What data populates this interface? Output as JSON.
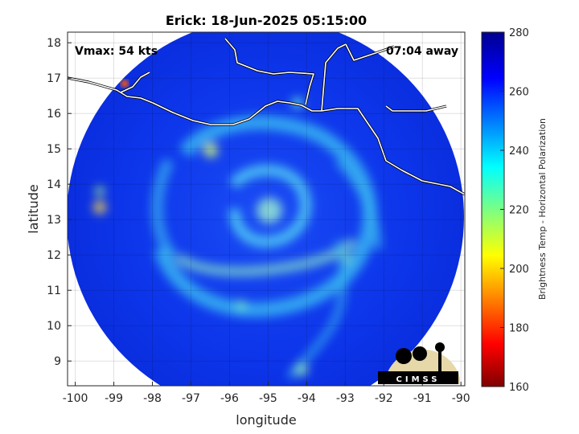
{
  "chart_data": {
    "type": "heatmap",
    "title": "Erick: 18-Jun-2025 05:15:00",
    "xlabel": "longitude",
    "ylabel": "latitude",
    "xlim": [
      -100.2,
      -89.9
    ],
    "ylim": [
      8.3,
      18.3
    ],
    "x_ticks": [
      "-100",
      "-99",
      "-98",
      "-97",
      "-96",
      "-95",
      "-94",
      "-93",
      "-92",
      "-91",
      "-90"
    ],
    "y_ticks": [
      "18",
      "17",
      "16",
      "15",
      "14",
      "13",
      "12",
      "11",
      "10",
      "9"
    ],
    "grid": true,
    "field": "brightness temperature (K), circular swath",
    "swath_center": {
      "lon": -94.9,
      "lat": 13.2
    },
    "storm_center": {
      "lon": -95.0,
      "lat": 13.2
    },
    "colorbar": {
      "label": "Brightness Temp - Horizontal Polarization",
      "range": [
        160,
        280
      ],
      "ticks": [
        "280",
        "260",
        "240",
        "220",
        "200",
        "180",
        "160"
      ],
      "colormap": [
        "#7f0000",
        "#ff0000",
        "#ffff00",
        "#00ffff",
        "#0000ff",
        "#00008f"
      ]
    },
    "annotations": {
      "vmax": "Vmax: 54 kts",
      "time_away": "07:04 away",
      "logo": "CIMSS"
    }
  }
}
